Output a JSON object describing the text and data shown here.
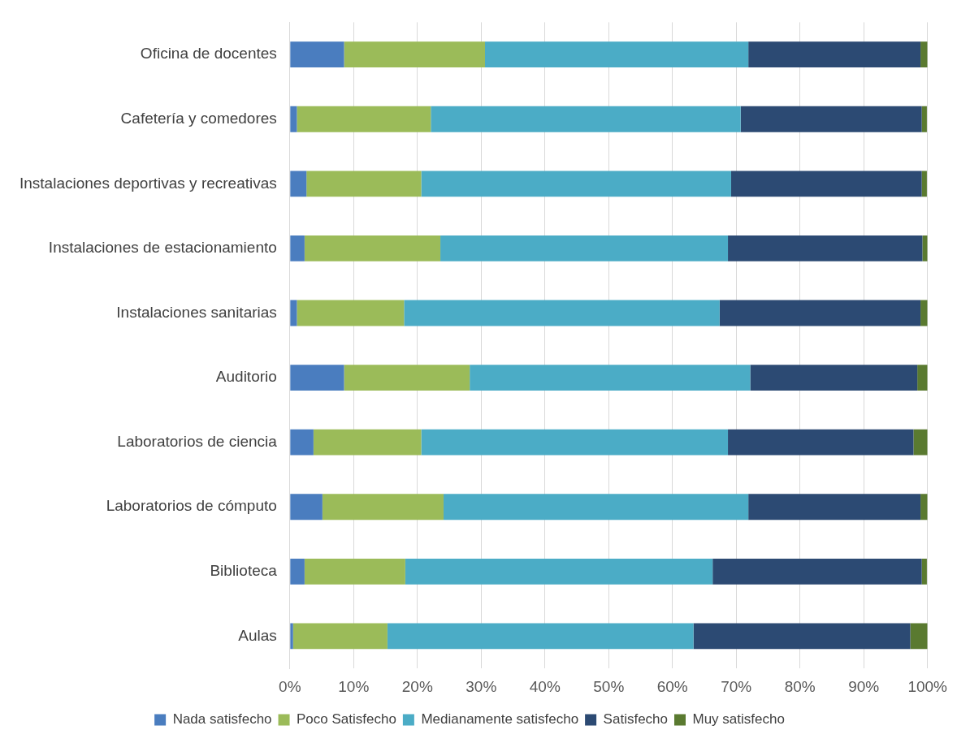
{
  "chart_data": {
    "type": "bar",
    "orientation": "horizontal",
    "stacked": true,
    "categories": [
      "Oficina de docentes",
      "Cafetería y comedores",
      "Instalaciones deportivas y recreativas",
      "Instalaciones de estacionamiento",
      "Instalaciones sanitarias",
      "Auditorio",
      "Laboratorios de ciencia",
      "Laboratorios de cómputo",
      "Biblioteca",
      "Aulas"
    ],
    "series": [
      {
        "name": "Nada satisfecho",
        "color": "#4a7dbf",
        "values": [
          8.5,
          1.1,
          2.6,
          2.3,
          1.1,
          8.5,
          3.7,
          5.1,
          2.3,
          0.5
        ]
      },
      {
        "name": "Poco Satisfecho",
        "color": "#9bbb59",
        "values": [
          22.1,
          21.0,
          18.0,
          21.3,
          16.8,
          19.7,
          16.9,
          19.0,
          15.8,
          14.8
        ]
      },
      {
        "name": "Medianamente satisfecho",
        "color": "#4bacc6",
        "values": [
          41.3,
          48.6,
          48.6,
          45.1,
          49.5,
          44.0,
          48.1,
          47.8,
          48.2,
          48.0
        ]
      },
      {
        "name": "Satisfecho",
        "color": "#2c4a73",
        "values": [
          27.0,
          28.4,
          29.9,
          30.5,
          31.5,
          26.2,
          29.1,
          27.0,
          32.8,
          34.0
        ]
      },
      {
        "name": "Muy satisfecho",
        "color": "#5a7a30",
        "values": [
          1.1,
          0.8,
          0.8,
          0.8,
          1.1,
          1.6,
          2.2,
          1.1,
          0.8,
          2.7
        ]
      }
    ],
    "xlim": [
      0,
      100
    ],
    "xticks": [
      {
        "value": 0,
        "label": "0%"
      },
      {
        "value": 10,
        "label": "10%"
      },
      {
        "value": 20,
        "label": "20%"
      },
      {
        "value": 30,
        "label": "30%"
      },
      {
        "value": 40,
        "label": "40%"
      },
      {
        "value": 50,
        "label": "50%"
      },
      {
        "value": 60,
        "label": "60%"
      },
      {
        "value": 70,
        "label": "70%"
      },
      {
        "value": 80,
        "label": "80%"
      },
      {
        "value": 90,
        "label": "90%"
      },
      {
        "value": 100,
        "label": "100%"
      }
    ],
    "grid": "x",
    "legend": "bottom"
  }
}
